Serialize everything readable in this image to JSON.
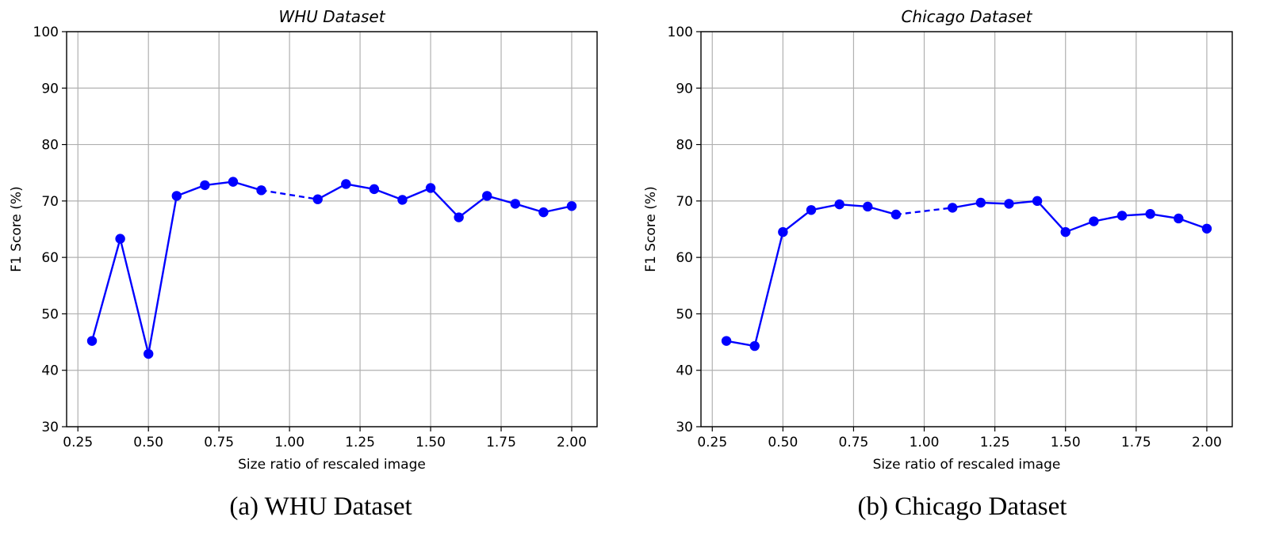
{
  "captions": [
    "(a) WHU Dataset",
    "(b) Chicago Dataset"
  ],
  "chart_data": [
    {
      "type": "line",
      "title": "WHU Dataset",
      "xlabel": "Size ratio of rescaled image",
      "ylabel": "F1 Score (%)",
      "xlim": [
        0.21,
        2.09
      ],
      "ylim": [
        30,
        100
      ],
      "xticks": [
        "0.25",
        "0.50",
        "0.75",
        "1.00",
        "1.25",
        "1.50",
        "1.75",
        "2.00"
      ],
      "yticks": [
        "30",
        "40",
        "50",
        "60",
        "70",
        "80",
        "90",
        "100"
      ],
      "grid": true,
      "color": "#0000ff",
      "series": [
        {
          "style": "solid",
          "x": [
            0.3,
            0.4,
            0.5,
            0.6,
            0.7,
            0.8,
            0.9
          ],
          "y": [
            45.2,
            63.3,
            42.9,
            70.9,
            72.8,
            73.4,
            71.9
          ]
        },
        {
          "style": "dashed",
          "x": [
            0.9,
            1.1
          ],
          "y": [
            71.9,
            70.3
          ]
        },
        {
          "style": "solid",
          "x": [
            1.1,
            1.2,
            1.3,
            1.4,
            1.5,
            1.6,
            1.7,
            1.8,
            1.9,
            2.0
          ],
          "y": [
            70.3,
            73.0,
            72.1,
            70.2,
            72.3,
            67.1,
            70.9,
            69.5,
            68.0,
            69.1
          ]
        }
      ]
    },
    {
      "type": "line",
      "title": "Chicago Dataset",
      "xlabel": "Size ratio of rescaled image",
      "ylabel": "F1 Score (%)",
      "xlim": [
        0.21,
        2.09
      ],
      "ylim": [
        30,
        100
      ],
      "xticks": [
        "0.25",
        "0.50",
        "0.75",
        "1.00",
        "1.25",
        "1.50",
        "1.75",
        "2.00"
      ],
      "yticks": [
        "30",
        "40",
        "50",
        "60",
        "70",
        "80",
        "90",
        "100"
      ],
      "grid": true,
      "color": "#0000ff",
      "series": [
        {
          "style": "solid",
          "x": [
            0.3,
            0.4,
            0.5,
            0.6,
            0.7,
            0.8,
            0.9
          ],
          "y": [
            45.2,
            44.3,
            64.5,
            68.4,
            69.4,
            69.0,
            67.6
          ]
        },
        {
          "style": "dashed",
          "x": [
            0.9,
            1.1
          ],
          "y": [
            67.6,
            68.8
          ]
        },
        {
          "style": "solid",
          "x": [
            1.1,
            1.2,
            1.3,
            1.4,
            1.5,
            1.6,
            1.7,
            1.8,
            1.9,
            2.0
          ],
          "y": [
            68.8,
            69.7,
            69.5,
            70.0,
            64.5,
            66.4,
            67.4,
            67.7,
            66.9,
            65.1
          ]
        }
      ]
    }
  ]
}
